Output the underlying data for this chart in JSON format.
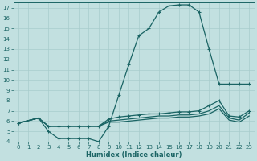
{
  "xlabel": "Humidex (Indice chaleur)",
  "ylabel": "",
  "bg_color": "#c2e0e0",
  "grid_color": "#a8cccc",
  "line_color": "#1a6464",
  "xlim": [
    -0.5,
    23.5
  ],
  "ylim": [
    4,
    17.5
  ],
  "xticks": [
    0,
    1,
    2,
    3,
    4,
    5,
    6,
    7,
    8,
    9,
    10,
    11,
    12,
    13,
    14,
    15,
    16,
    17,
    18,
    19,
    20,
    21,
    22,
    23
  ],
  "yticks": [
    4,
    5,
    6,
    7,
    8,
    9,
    10,
    11,
    12,
    13,
    14,
    15,
    16,
    17
  ],
  "line1_x": [
    0,
    2,
    3,
    4,
    5,
    6,
    7,
    8,
    9,
    10,
    11,
    12,
    13,
    14,
    15,
    16,
    17,
    18,
    19,
    20,
    21,
    22,
    23
  ],
  "line1_y": [
    5.8,
    6.3,
    5.0,
    4.3,
    4.3,
    4.3,
    4.3,
    4.0,
    5.5,
    8.5,
    11.5,
    14.3,
    15.0,
    16.6,
    17.2,
    17.3,
    17.3,
    16.6,
    13.0,
    9.6,
    9.6,
    9.6,
    9.6
  ],
  "line2_x": [
    0,
    2,
    3,
    4,
    5,
    6,
    7,
    8,
    9,
    10,
    11,
    12,
    13,
    14,
    15,
    16,
    17,
    18,
    19,
    20,
    21,
    22,
    23
  ],
  "line2_y": [
    5.8,
    6.3,
    5.5,
    5.5,
    5.5,
    5.5,
    5.5,
    5.5,
    6.2,
    6.4,
    6.5,
    6.6,
    6.7,
    6.7,
    6.8,
    6.9,
    6.9,
    7.0,
    7.5,
    8.0,
    6.5,
    6.4,
    7.0
  ],
  "line3_x": [
    0,
    2,
    3,
    4,
    5,
    6,
    7,
    8,
    9,
    10,
    11,
    12,
    13,
    14,
    15,
    16,
    17,
    18,
    19,
    20,
    21,
    22,
    23
  ],
  "line3_y": [
    5.8,
    6.3,
    5.5,
    5.5,
    5.5,
    5.5,
    5.5,
    5.5,
    6.0,
    6.1,
    6.2,
    6.3,
    6.4,
    6.5,
    6.5,
    6.6,
    6.6,
    6.7,
    7.0,
    7.5,
    6.3,
    6.1,
    6.8
  ],
  "line4_x": [
    0,
    2,
    3,
    4,
    5,
    6,
    7,
    8,
    9,
    10,
    11,
    12,
    13,
    14,
    15,
    16,
    17,
    18,
    19,
    20,
    21,
    22,
    23
  ],
  "line4_y": [
    5.8,
    6.3,
    5.5,
    5.5,
    5.5,
    5.5,
    5.5,
    5.5,
    5.9,
    5.9,
    6.0,
    6.1,
    6.2,
    6.3,
    6.3,
    6.4,
    6.4,
    6.5,
    6.7,
    7.2,
    6.1,
    5.9,
    6.5
  ]
}
